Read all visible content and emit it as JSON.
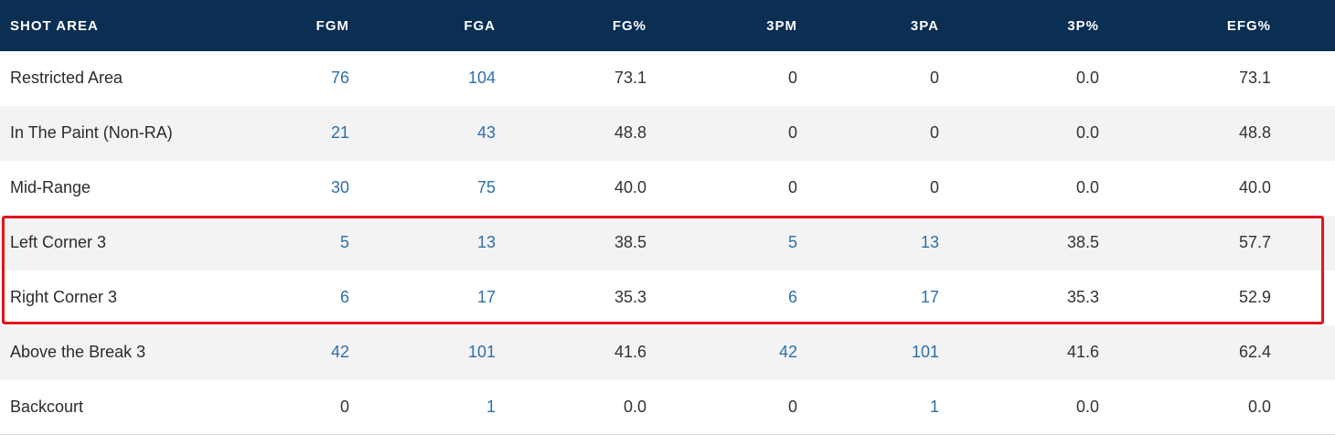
{
  "table": {
    "headers": [
      "SHOT AREA",
      "FGM",
      "FGA",
      "FG%",
      "3PM",
      "3PA",
      "3P%",
      "EFG%"
    ],
    "rows": [
      {
        "area": "Restricted Area",
        "fgm": "76",
        "fga": "104",
        "fgp": "73.1",
        "tpm": "0",
        "tpa": "0",
        "tpp": "0.0",
        "efg": "73.1"
      },
      {
        "area": "In The Paint (Non-RA)",
        "fgm": "21",
        "fga": "43",
        "fgp": "48.8",
        "tpm": "0",
        "tpa": "0",
        "tpp": "0.0",
        "efg": "48.8"
      },
      {
        "area": "Mid-Range",
        "fgm": "30",
        "fga": "75",
        "fgp": "40.0",
        "tpm": "0",
        "tpa": "0",
        "tpp": "0.0",
        "efg": "40.0"
      },
      {
        "area": "Left Corner 3",
        "fgm": "5",
        "fga": "13",
        "fgp": "38.5",
        "tpm": "5",
        "tpa": "13",
        "tpp": "38.5",
        "efg": "57.7"
      },
      {
        "area": "Right Corner 3",
        "fgm": "6",
        "fga": "17",
        "fgp": "35.3",
        "tpm": "6",
        "tpa": "17",
        "tpp": "35.3",
        "efg": "52.9"
      },
      {
        "area": "Above the Break 3",
        "fgm": "42",
        "fga": "101",
        "fgp": "41.6",
        "tpm": "42",
        "tpa": "101",
        "tpp": "41.6",
        "efg": "62.4"
      },
      {
        "area": "Backcourt",
        "fgm": "0",
        "fga": "1",
        "fgp": "0.0",
        "tpm": "0",
        "tpa": "1",
        "tpp": "0.0",
        "efg": "0.0"
      }
    ]
  },
  "colors": {
    "header_bg": "#0b2e53",
    "link": "#2f6fa8",
    "highlight_border": "#e3141c",
    "row_alt": "#f3f3f3"
  }
}
